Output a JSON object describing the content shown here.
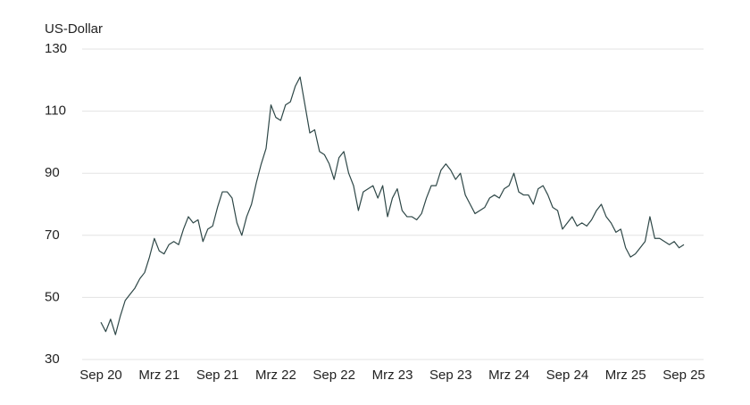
{
  "chart_data": {
    "type": "line",
    "y_label": "US-Dollar",
    "categories": [
      "Sep 20",
      null,
      null,
      null,
      null,
      null,
      null,
      null,
      null,
      null,
      null,
      null,
      "Mrz 21",
      null,
      null,
      null,
      null,
      null,
      null,
      null,
      null,
      null,
      null,
      null,
      "Sep 21",
      null,
      null,
      null,
      null,
      null,
      null,
      null,
      null,
      null,
      null,
      null,
      "Mrz 22",
      null,
      null,
      null,
      null,
      null,
      null,
      null,
      null,
      null,
      null,
      null,
      "Sep 22",
      null,
      null,
      null,
      null,
      null,
      null,
      null,
      null,
      null,
      null,
      null,
      "Mrz 23",
      null,
      null,
      null,
      null,
      null,
      null,
      null,
      null,
      null,
      null,
      null,
      "Sep 23",
      null,
      null,
      null,
      null,
      null,
      null,
      null,
      null,
      null,
      null,
      null,
      "Mrz 24",
      null,
      null,
      null,
      null,
      null,
      null,
      null,
      null,
      null,
      null,
      null,
      "Sep 24",
      null,
      null,
      null,
      null,
      null,
      null,
      null,
      null,
      null,
      null,
      null,
      "Mrz 25",
      null,
      null,
      null,
      null,
      null,
      null,
      null,
      null,
      null,
      null,
      null,
      "Sep 25"
    ],
    "values": [
      42,
      39,
      43,
      38,
      44,
      49,
      51,
      53,
      56,
      58,
      63,
      69,
      65,
      64,
      67,
      68,
      67,
      72,
      76,
      74,
      75,
      68,
      72,
      73,
      79,
      84,
      84,
      82,
      74,
      70,
      76,
      80,
      87,
      93,
      98,
      112,
      108,
      107,
      112,
      113,
      118,
      121,
      112,
      103,
      104,
      97,
      96,
      93,
      88,
      95,
      97,
      90,
      86,
      78,
      84,
      85,
      86,
      82,
      86,
      76,
      82,
      85,
      78,
      76,
      76,
      75,
      77,
      82,
      86,
      86,
      91,
      93,
      91,
      88,
      90,
      83,
      80,
      77,
      78,
      79,
      82,
      83,
      82,
      85,
      86,
      90,
      84,
      83,
      83,
      80,
      85,
      86,
      83,
      79,
      78,
      72,
      74,
      76,
      73,
      74,
      73,
      75,
      78,
      80,
      76,
      74,
      71,
      72,
      66,
      63,
      64,
      66,
      68,
      76,
      69,
      69,
      68,
      67,
      68,
      66,
      67
    ],
    "color": "#2e4747",
    "ylim": [
      30,
      130
    ],
    "yticks": [
      30,
      50,
      70,
      90,
      110,
      130
    ],
    "grid": true
  }
}
